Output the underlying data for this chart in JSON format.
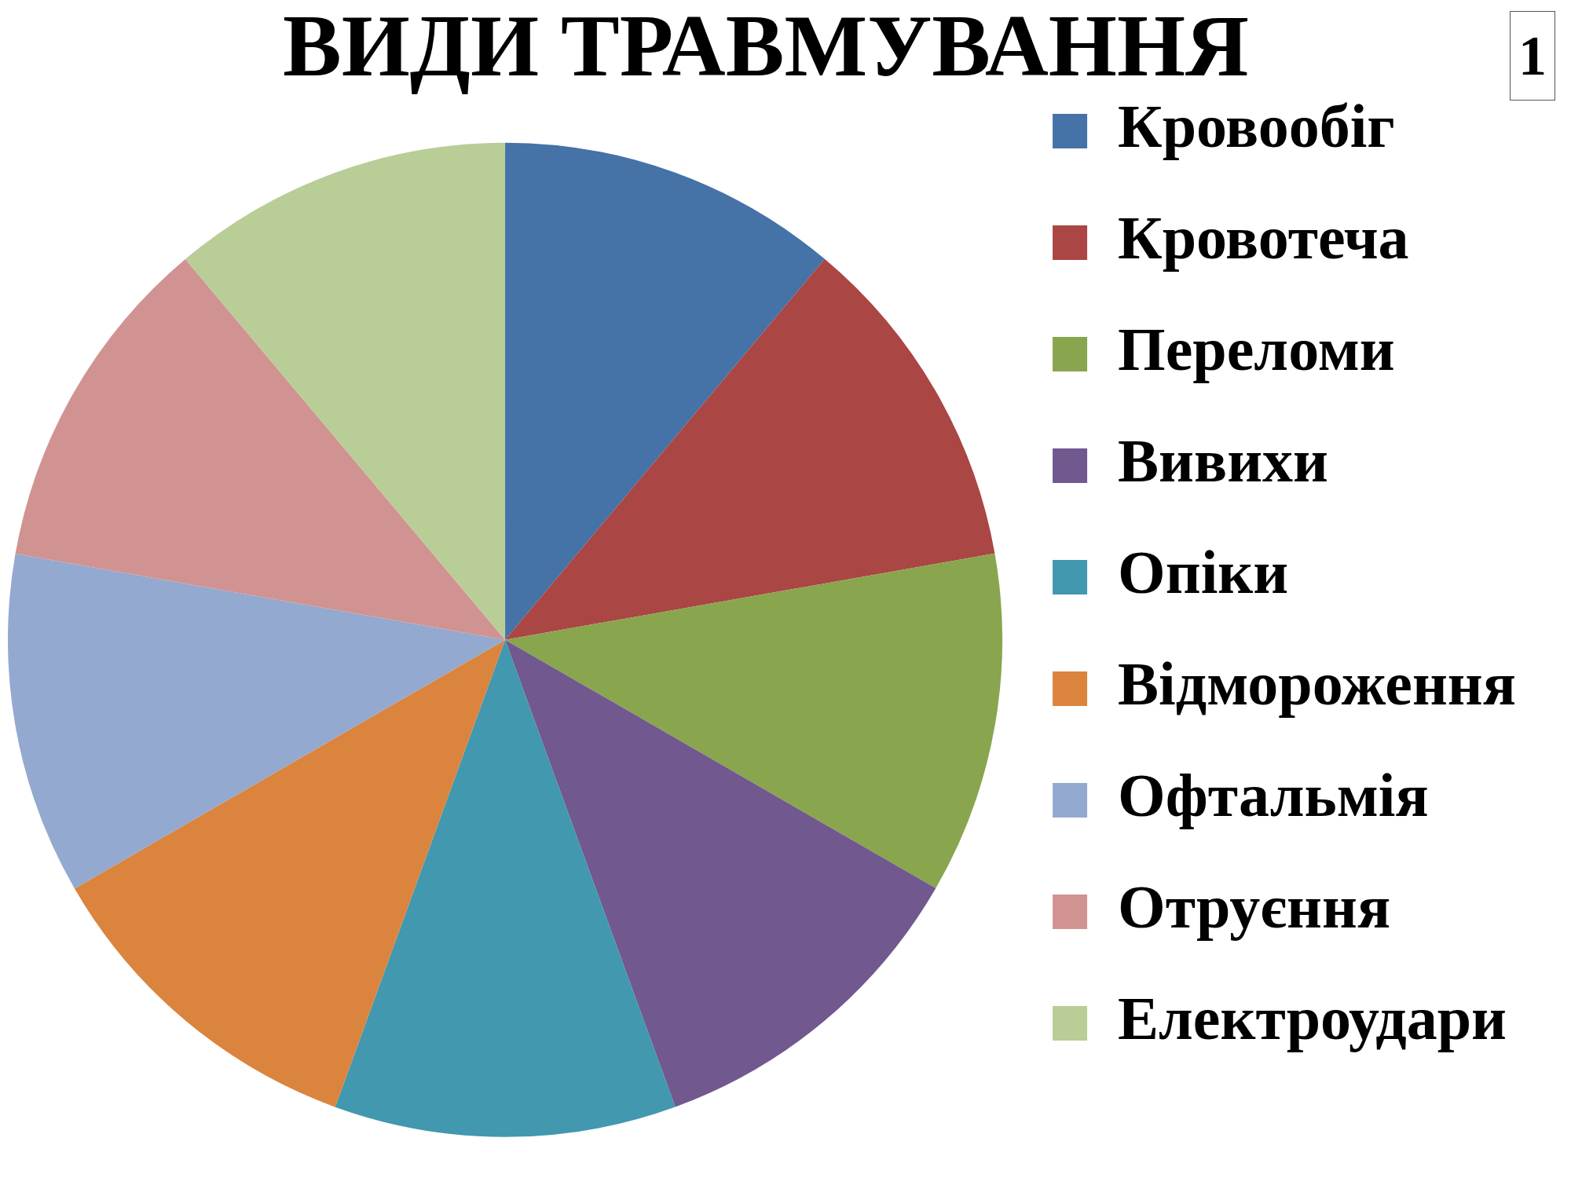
{
  "chart_data": {
    "type": "pie",
    "title": "ВИДИ ТРАВМУВАННЯ",
    "categories": [
      "Кровообіг",
      "Кровотеча",
      "Переломи",
      "Вивихи",
      "Опіки",
      "Відмороження",
      "Офтальмія",
      "Отруєння",
      "Електроудари"
    ],
    "values": [
      11.11,
      11.11,
      11.11,
      11.11,
      11.11,
      11.11,
      11.11,
      11.11,
      11.12
    ],
    "colors": [
      "#4572a7",
      "#aa4643",
      "#89a54e",
      "#71588f",
      "#4198af",
      "#db843d",
      "#93a9cf",
      "#d19392",
      "#b9cd96"
    ],
    "legend": "right",
    "annotations": [
      "1"
    ]
  }
}
